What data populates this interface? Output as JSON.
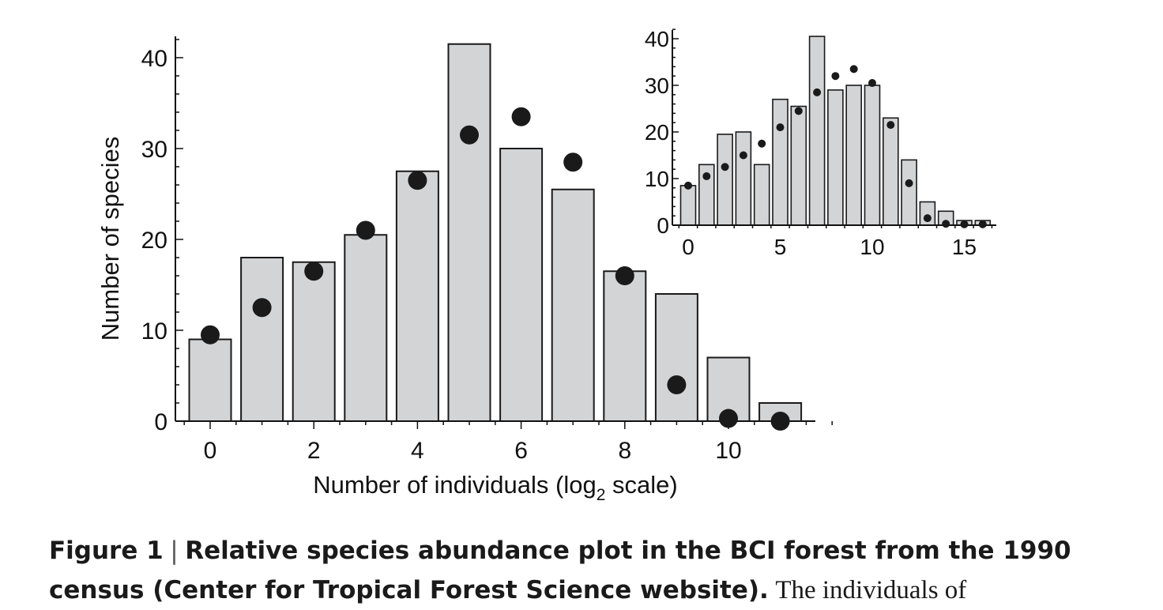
{
  "chart_data": [
    {
      "type": "bar",
      "xlabel_main": "Number of individuals (log",
      "xlabel_sub": "2",
      "xlabel_tail": " scale)",
      "ylabel": "Number of species",
      "x_ticks": [
        "0",
        "2",
        "4",
        "6",
        "8",
        "10"
      ],
      "y_ticks": [
        "0",
        "10",
        "20",
        "30",
        "40"
      ],
      "ylim": [
        0,
        42
      ],
      "categories": [
        0,
        1,
        2,
        3,
        4,
        5,
        6,
        7,
        8,
        9,
        10,
        11
      ],
      "series": [
        {
          "kind": "bars",
          "values": [
            9,
            18,
            17.5,
            20.5,
            27.5,
            41.5,
            30,
            25.5,
            16.5,
            14,
            7,
            2
          ]
        },
        {
          "kind": "points",
          "values": [
            9.5,
            12.5,
            16.5,
            21,
            26.5,
            31.5,
            33.5,
            28.5,
            16,
            4,
            0.3,
            0
          ]
        }
      ]
    },
    {
      "type": "bar",
      "inset": true,
      "x_ticks": [
        "0",
        "5",
        "10",
        "15"
      ],
      "y_ticks": [
        "0",
        "10",
        "20",
        "30",
        "40"
      ],
      "ylim": [
        0,
        42
      ],
      "categories": [
        0,
        1,
        2,
        3,
        4,
        5,
        6,
        7,
        8,
        9,
        10,
        11,
        12,
        13,
        14,
        15,
        16
      ],
      "series": [
        {
          "kind": "bars",
          "values": [
            8.5,
            13,
            19.5,
            20,
            13,
            27,
            25.5,
            40.5,
            29,
            30,
            30,
            23,
            14,
            5,
            3,
            1,
            1
          ]
        },
        {
          "kind": "points",
          "values": [
            8.5,
            10.5,
            12.5,
            15,
            17.5,
            21,
            24.5,
            28.5,
            32,
            33.5,
            30.5,
            21.5,
            9,
            1.5,
            0.3,
            0.2,
            0.2
          ]
        }
      ]
    }
  ],
  "caption": {
    "label": "Figure 1",
    "separator": "|",
    "title": "Relative species abundance plot in the BCI forest from the 1990 census (Center for Tropical Forest Science website).",
    "body": "The individuals of"
  }
}
